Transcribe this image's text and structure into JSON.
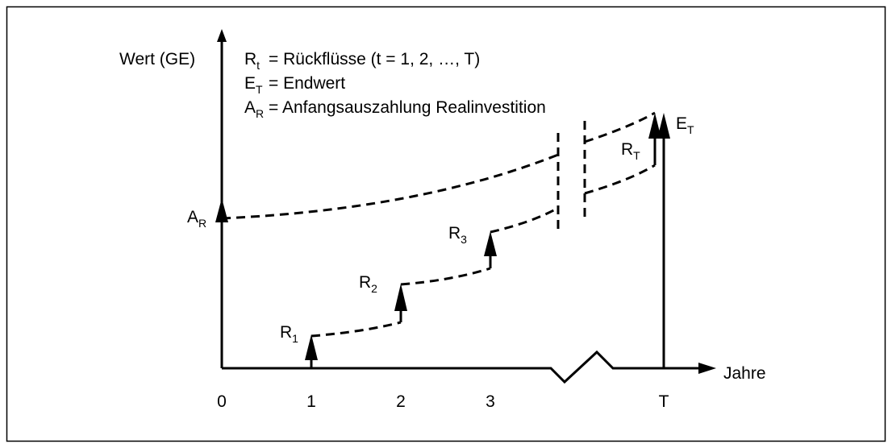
{
  "y_axis_label": "Wert (GE)",
  "x_axis_label": "Jahre",
  "legend": [
    {
      "symbol": "R",
      "sub": "t",
      "text": "= Rückflüsse (t = 1, 2, …, T)"
    },
    {
      "symbol": "E",
      "sub": "T",
      "text": "= Endwert"
    },
    {
      "symbol": "A",
      "sub": "R",
      "text": "= Anfangsauszahlung Realinvestition"
    }
  ],
  "x_ticks": [
    "0",
    "1",
    "2",
    "3",
    "T"
  ],
  "labels": {
    "a_r": {
      "symbol": "A",
      "sub": "R"
    },
    "r_1": {
      "symbol": "R",
      "sub": "1"
    },
    "r_2": {
      "symbol": "R",
      "sub": "2"
    },
    "r_3": {
      "symbol": "R",
      "sub": "3"
    },
    "r_t": {
      "symbol": "R",
      "sub": "T"
    },
    "e_t": {
      "symbol": "E",
      "sub": "T"
    }
  }
}
